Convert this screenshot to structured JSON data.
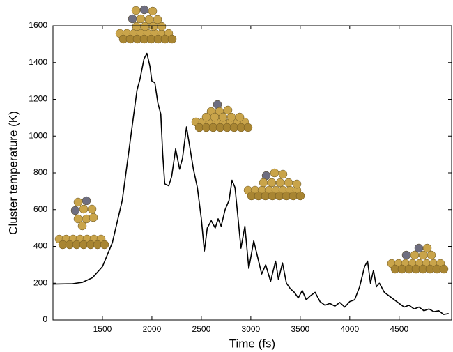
{
  "chart_data": {
    "type": "line",
    "x_label": "Time (fs)",
    "y_label": "Cluster temperature (K)",
    "x": [
      1000,
      1200,
      1300,
      1400,
      1500,
      1600,
      1700,
      1750,
      1800,
      1850,
      1880,
      1920,
      1950,
      1980,
      2000,
      2030,
      2060,
      2090,
      2110,
      2130,
      2170,
      2200,
      2240,
      2280,
      2310,
      2350,
      2380,
      2420,
      2460,
      2500,
      2530,
      2560,
      2600,
      2640,
      2670,
      2700,
      2740,
      2780,
      2810,
      2840,
      2870,
      2900,
      2940,
      2980,
      3030,
      3070,
      3110,
      3150,
      3200,
      3250,
      3280,
      3320,
      3360,
      3400,
      3440,
      3480,
      3520,
      3560,
      3600,
      3650,
      3700,
      3750,
      3800,
      3850,
      3900,
      3950,
      4000,
      4050,
      4100,
      4150,
      4180,
      4210,
      4240,
      4270,
      4300,
      4350,
      4400,
      4450,
      4500,
      4550,
      4600,
      4650,
      4700,
      4750,
      4800,
      4850,
      4900,
      4950,
      5000
    ],
    "series": [
      {
        "color": "#000000",
        "values": [
          195,
          197,
          205,
          230,
          290,
          420,
          650,
          850,
          1050,
          1250,
          1310,
          1420,
          1450,
          1380,
          1300,
          1290,
          1180,
          1120,
          900,
          740,
          730,
          780,
          930,
          820,
          880,
          1050,
          950,
          820,
          720,
          550,
          375,
          500,
          540,
          500,
          550,
          510,
          600,
          650,
          760,
          720,
          560,
          390,
          510,
          280,
          430,
          340,
          250,
          300,
          210,
          320,
          220,
          310,
          200,
          170,
          150,
          120,
          160,
          110,
          130,
          150,
          100,
          80,
          90,
          75,
          95,
          70,
          100,
          110,
          180,
          290,
          320,
          200,
          270,
          180,
          200,
          150,
          130,
          110,
          90,
          70,
          80,
          60,
          70,
          50,
          60,
          45,
          50,
          30,
          35
        ]
      }
    ],
    "xlim": [
      1000,
      5030
    ],
    "xticks": [
      1500,
      2000,
      2500,
      3000,
      3500,
      4000,
      4500
    ],
    "ylim": [
      0,
      1600
    ],
    "yticks": [
      0,
      200,
      400,
      600,
      800,
      1000,
      1200,
      1400,
      1600
    ]
  }
}
